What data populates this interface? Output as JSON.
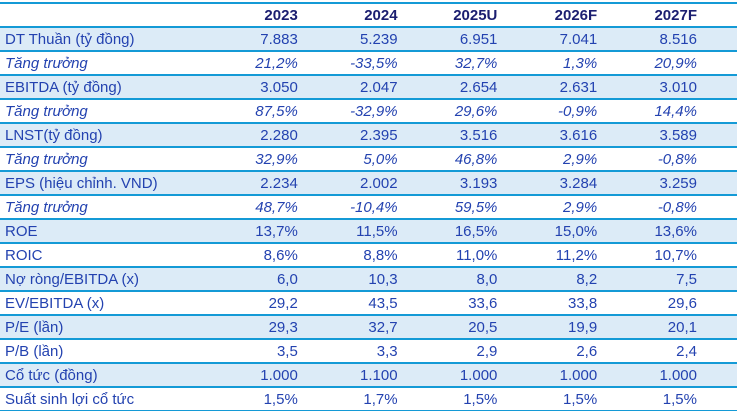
{
  "colors": {
    "accent_line": "#149ad6",
    "stripe_bg": "#dcebf7",
    "data_text": "#2342b0",
    "header_text": "#1b1e70"
  },
  "chart_data": {
    "type": "table",
    "title": "Financial forecast summary table",
    "columns": [
      "",
      "2023",
      "2024",
      "2025U",
      "2026F",
      "2027F"
    ],
    "rows": [
      {
        "label": "DT Thuần (tỷ đồng)",
        "values": [
          "7.883",
          "5.239",
          "6.951",
          "7.041",
          "8.516"
        ],
        "italic": false
      },
      {
        "label": "Tăng trưởng",
        "values": [
          "21,2%",
          "-33,5%",
          "32,7%",
          "1,3%",
          "20,9%"
        ],
        "italic": true
      },
      {
        "label": "EBITDA (tỷ đồng)",
        "values": [
          "3.050",
          "2.047",
          "2.654",
          "2.631",
          "3.010"
        ],
        "italic": false
      },
      {
        "label": "Tăng trưởng",
        "values": [
          "87,5%",
          "-32,9%",
          "29,6%",
          "-0,9%",
          "14,4%"
        ],
        "italic": true
      },
      {
        "label": "LNST(tỷ đồng)",
        "values": [
          "2.280",
          "2.395",
          "3.516",
          "3.616",
          "3.589"
        ],
        "italic": false
      },
      {
        "label": "Tăng trưởng",
        "values": [
          "32,9%",
          "5,0%",
          "46,8%",
          "2,9%",
          "-0,8%"
        ],
        "italic": true
      },
      {
        "label": "EPS (hiệu chỉnh. VND)",
        "values": [
          "2.234",
          "2.002",
          "3.193",
          "3.284",
          "3.259"
        ],
        "italic": false
      },
      {
        "label": "Tăng trưởng",
        "values": [
          "48,7%",
          "-10,4%",
          "59,5%",
          "2,9%",
          "-0,8%"
        ],
        "italic": true
      },
      {
        "label": "ROE",
        "values": [
          "13,7%",
          "11,5%",
          "16,5%",
          "15,0%",
          "13,6%"
        ],
        "italic": false
      },
      {
        "label": "ROIC",
        "values": [
          "8,6%",
          "8,8%",
          "11,0%",
          "11,2%",
          "10,7%"
        ],
        "italic": false
      },
      {
        "label": "Nợ ròng/EBITDA (x)",
        "values": [
          "6,0",
          "10,3",
          "8,0",
          "8,2",
          "7,5"
        ],
        "italic": false
      },
      {
        "label": "EV/EBITDA (x)",
        "values": [
          "29,2",
          "43,5",
          "33,6",
          "33,8",
          "29,6"
        ],
        "italic": false
      },
      {
        "label": "P/E (lần)",
        "values": [
          "29,3",
          "32,7",
          "20,5",
          "19,9",
          "20,1"
        ],
        "italic": false
      },
      {
        "label": "P/B (lần)",
        "values": [
          "3,5",
          "3,3",
          "2,9",
          "2,6",
          "2,4"
        ],
        "italic": false
      },
      {
        "label": "Cổ tức (đồng)",
        "values": [
          "1.000",
          "1.100",
          "1.000",
          "1.000",
          "1.000"
        ],
        "italic": false
      },
      {
        "label": "Suất sinh lợi cổ tức",
        "values": [
          "1,5%",
          "1,7%",
          "1,5%",
          "1,5%",
          "1,5%"
        ],
        "italic": false
      }
    ]
  }
}
